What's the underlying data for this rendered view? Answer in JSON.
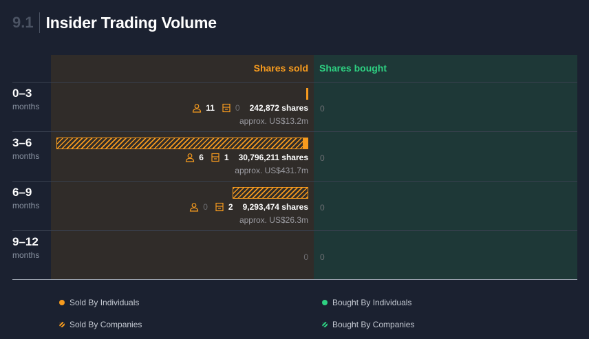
{
  "header": {
    "section_number": "9.1",
    "title": "Insider Trading Volume"
  },
  "columns": {
    "sold_label": "Shares sold",
    "bought_label": "Shares bought"
  },
  "colors": {
    "sold": "#f79b1e",
    "bought": "#2ed182",
    "sold_bg": "#302c29",
    "bought_bg": "#1e3837"
  },
  "rows": [
    {
      "range": "0–3",
      "unit": "months",
      "individuals": "11",
      "companies": "0",
      "shares": "242,872 shares",
      "approx": "approx. US$13.2m",
      "bought": "0",
      "sold_individuals_shares": 242872,
      "sold_companies_shares": 0
    },
    {
      "range": "3–6",
      "unit": "months",
      "individuals": "6",
      "companies": "1",
      "shares": "30,796,211 shares",
      "approx": "approx. US$431.7m",
      "bought": "0",
      "sold_individuals_shares": 600000,
      "sold_companies_shares": 30196211
    },
    {
      "range": "6–9",
      "unit": "months",
      "individuals": "0",
      "companies": "2",
      "shares": "9,293,474 shares",
      "approx": "approx. US$26.3m",
      "bought": "0",
      "sold_individuals_shares": 0,
      "sold_companies_shares": 9293474
    },
    {
      "range": "9–12",
      "unit": "months",
      "sold": "0",
      "bought": "0"
    }
  ],
  "legend": {
    "sold_individuals": "Sold By Individuals",
    "sold_companies": "Sold By Companies",
    "bought_individuals": "Bought By Individuals",
    "bought_companies": "Bought By Companies"
  },
  "icons": {
    "individual": "person-icon",
    "company": "building-icon"
  }
}
